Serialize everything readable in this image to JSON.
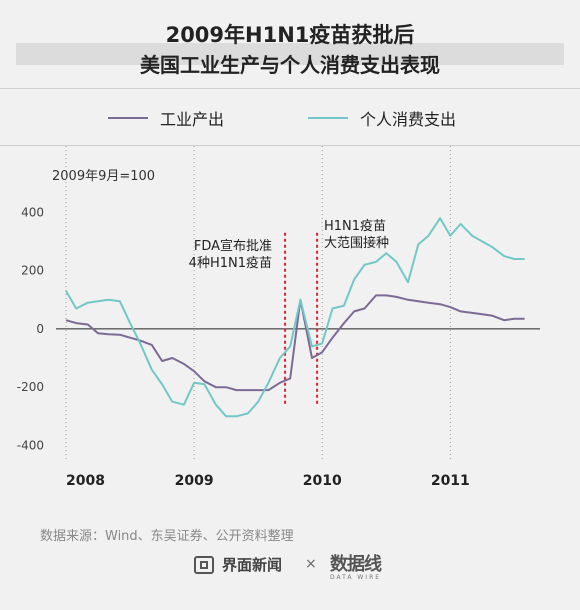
{
  "title_line1": "2009年H1N1疫苗获批后",
  "title_line2": "美国工业生产与个人消费支出表现",
  "unit_label": "2009年9月=100",
  "source": "数据来源：Wind、东吴证券、公开资料整理",
  "brand": {
    "left": "界面新闻",
    "separator": "×",
    "right": "数据线",
    "right_sub": "DATA WIRE"
  },
  "colors": {
    "industrial": "#7b6a94",
    "consumption": "#72c8c6",
    "marker": "#d6262d",
    "background": "#f1f1f1"
  },
  "chart_data": {
    "type": "line",
    "ylim": [
      -450,
      470
    ],
    "yticks": [
      -400,
      -200,
      0,
      200,
      400
    ],
    "xlim": [
      2008.0,
      2011.7
    ],
    "xticks": [
      {
        "value": 2008,
        "label": "2008"
      },
      {
        "value": 2009,
        "label": "2009"
      },
      {
        "value": 2010,
        "label": "2010"
      },
      {
        "value": 2011,
        "label": "2011"
      }
    ],
    "legend_position": "top",
    "series": [
      {
        "name": "工业产出",
        "color": "#7b6a94",
        "x": [
          2008.0,
          2008.08,
          2008.17,
          2008.25,
          2008.33,
          2008.42,
          2008.5,
          2008.58,
          2008.67,
          2008.75,
          2008.83,
          2008.92,
          2009.0,
          2009.08,
          2009.17,
          2009.25,
          2009.33,
          2009.42,
          2009.5,
          2009.58,
          2009.67,
          2009.75,
          2009.83,
          2009.92,
          2010.0,
          2010.08,
          2010.17,
          2010.25,
          2010.33,
          2010.42,
          2010.5,
          2010.58,
          2010.67,
          2010.75,
          2010.83,
          2010.92,
          2011.0,
          2011.08,
          2011.17,
          2011.25,
          2011.33,
          2011.42,
          2011.5,
          2011.58
        ],
        "y": [
          30,
          20,
          15,
          -15,
          -18,
          -20,
          -30,
          -40,
          -55,
          -110,
          -100,
          -120,
          -145,
          -180,
          -200,
          -200,
          -210,
          -210,
          -210,
          -210,
          -185,
          -170,
          100,
          -100,
          -80,
          -30,
          20,
          60,
          70,
          115,
          115,
          110,
          100,
          95,
          90,
          85,
          75,
          60,
          55,
          50,
          45,
          30,
          35,
          35
        ]
      },
      {
        "name": "个人消费支出",
        "color": "#72c8c6",
        "x": [
          2008.0,
          2008.08,
          2008.17,
          2008.25,
          2008.33,
          2008.42,
          2008.5,
          2008.58,
          2008.67,
          2008.75,
          2008.83,
          2008.92,
          2009.0,
          2009.08,
          2009.17,
          2009.25,
          2009.33,
          2009.42,
          2009.5,
          2009.58,
          2009.67,
          2009.75,
          2009.83,
          2009.92,
          2010.0,
          2010.08,
          2010.17,
          2010.25,
          2010.33,
          2010.42,
          2010.5,
          2010.58,
          2010.67,
          2010.75,
          2010.83,
          2010.92,
          2011.0,
          2011.08,
          2011.17,
          2011.25,
          2011.33,
          2011.42,
          2011.5,
          2011.58
        ],
        "y": [
          130,
          70,
          90,
          95,
          100,
          95,
          20,
          -50,
          -140,
          -190,
          -250,
          -260,
          -185,
          -190,
          -260,
          -300,
          -300,
          -290,
          -250,
          -185,
          -100,
          -60,
          100,
          -60,
          -50,
          70,
          80,
          170,
          220,
          230,
          260,
          230,
          160,
          290,
          320,
          380,
          320,
          360,
          320,
          300,
          280,
          250,
          240,
          240
        ]
      }
    ],
    "annotations": [
      {
        "label_lines": [
          "FDA宣布批准",
          "4种H1N1疫苗"
        ],
        "x": 2009.71,
        "y_from": -260,
        "y_to": 330
      },
      {
        "label_lines": [
          "H1N1疫苗",
          "大范围接种"
        ],
        "x": 2009.96,
        "y_from": -260,
        "y_to": 330
      }
    ]
  }
}
